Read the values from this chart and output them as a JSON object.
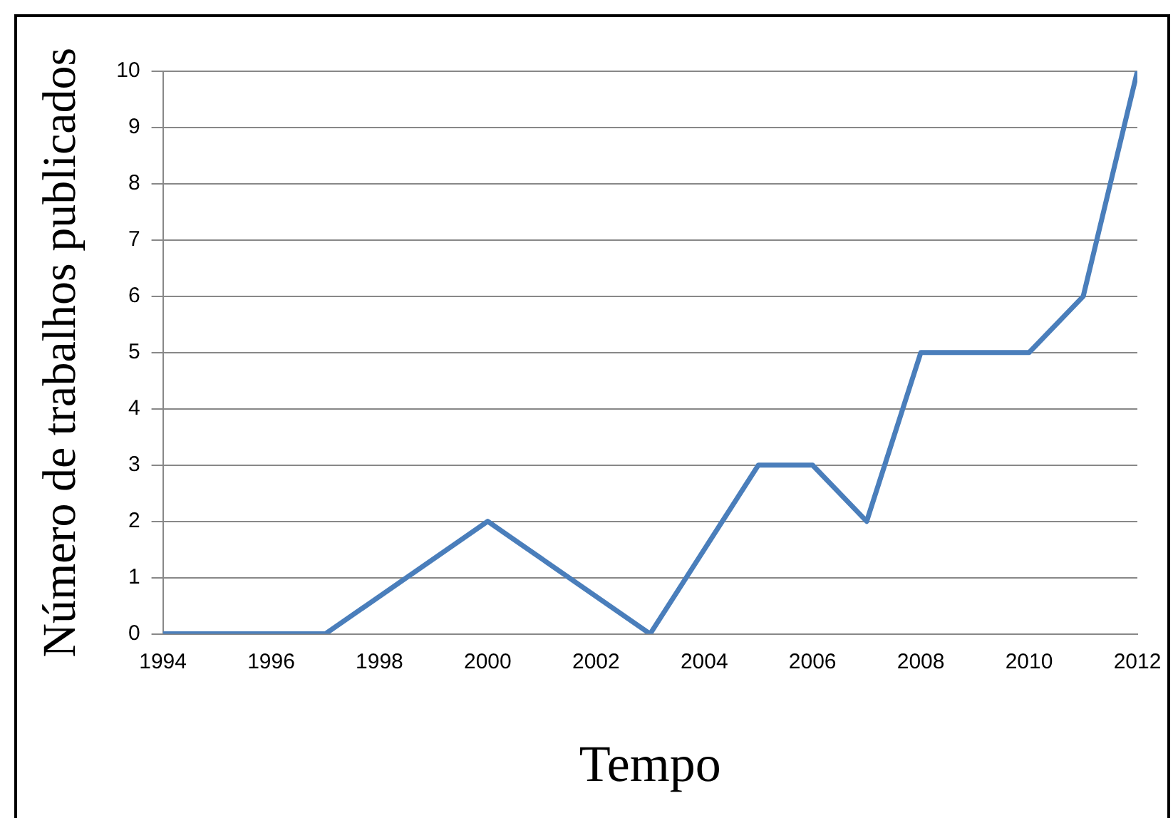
{
  "chart_data": {
    "type": "line",
    "xlabel": "Tempo",
    "ylabel": "Número de trabalhos publicados",
    "x": [
      1994,
      1995,
      1996,
      1997,
      2000,
      2003,
      2005,
      2006,
      2007,
      2008,
      2010,
      2011,
      2012
    ],
    "series": [
      {
        "color": "#4a7ebb",
        "values": [
          0,
          0,
          0,
          0,
          2,
          0,
          3,
          3,
          2,
          5,
          5,
          6,
          10
        ]
      }
    ],
    "xlim": [
      1994,
      2012
    ],
    "xticks": [
      1994,
      1996,
      1998,
      2000,
      2002,
      2004,
      2006,
      2008,
      2010,
      2012
    ],
    "ylim": [
      0,
      10
    ],
    "yticks": [
      0,
      1,
      2,
      3,
      4,
      5,
      6,
      7,
      8,
      9,
      10
    ],
    "grid": "y",
    "legend": false,
    "marker": "none",
    "line_style": "solid"
  }
}
